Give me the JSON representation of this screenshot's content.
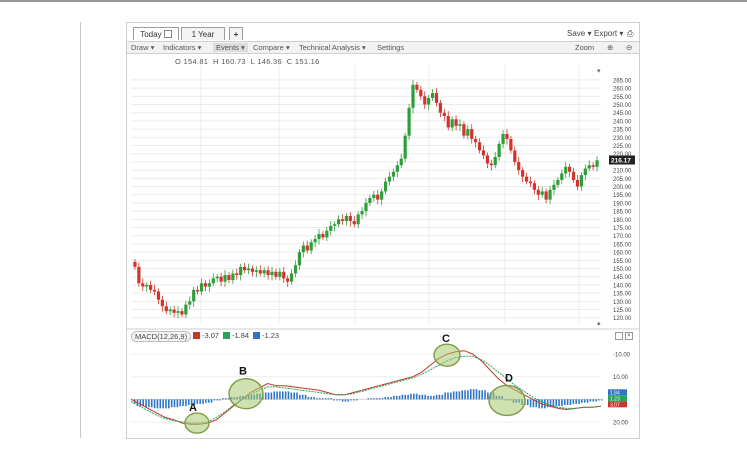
{
  "toolbar": {
    "tabs": [
      "Today",
      "1 Year",
      "+"
    ],
    "save": "Save",
    "export": "Export",
    "menu": [
      "Draw",
      "Indicators",
      "Events",
      "Compare",
      "Technical Analysis",
      "Settings"
    ],
    "zoom": "Zoom"
  },
  "ohlc": {
    "open": "O 154.81",
    "high": "H 160.73",
    "low": "L 146.36",
    "close": "C 151.16"
  },
  "price_panel": {
    "last_price": "216.17",
    "y_ticks": [
      "265.00",
      "260.00",
      "255.00",
      "250.00",
      "245.00",
      "240.00",
      "235.00",
      "230.00",
      "225.00",
      "220.00",
      "215.00",
      "210.00",
      "205.00",
      "200.00",
      "195.00",
      "190.00",
      "185.00",
      "180.00",
      "175.00",
      "170.00",
      "165.00",
      "160.00",
      "155.00",
      "150.00",
      "145.00",
      "140.00",
      "135.00",
      "130.00",
      "125.00",
      "120.00"
    ]
  },
  "macd_panel": {
    "label": "MACD(12,26,9)",
    "values": [
      "-3.07",
      "-1.84",
      "-1.23"
    ],
    "colors": [
      "#c0392b",
      "#27a35a",
      "#2e75c7"
    ],
    "y_ticks": [
      "20.00",
      "10.00",
      "-10.00"
    ],
    "right_tags": [
      "1.84",
      "1.23",
      "3.07"
    ]
  },
  "annotations": [
    "A",
    "B",
    "C",
    "D"
  ],
  "colors": {
    "up": "#2e9e3a",
    "down": "#d0342c",
    "macd_line": "#c0392b",
    "signal_line": "#27a35a",
    "histogram": "#2e75c7",
    "highlight": "#a8c870"
  },
  "chart_data": [
    {
      "type": "candlestick",
      "ylim": [
        118,
        268
      ],
      "y_ticks": [
        120,
        125,
        130,
        135,
        140,
        145,
        150,
        155,
        160,
        165,
        170,
        175,
        180,
        185,
        190,
        195,
        200,
        205,
        210,
        215,
        220,
        225,
        230,
        235,
        240,
        245,
        250,
        255,
        260,
        265
      ],
      "last_price": 216.17,
      "close": [
        151,
        141,
        139,
        140,
        137,
        136,
        131,
        127,
        124,
        125,
        123,
        124,
        122,
        128,
        130,
        137,
        136,
        141,
        139,
        141,
        144,
        145,
        142,
        146,
        143,
        147,
        146,
        151,
        149,
        150,
        148,
        149,
        147,
        149,
        146,
        148,
        145,
        148,
        144,
        142,
        147,
        152,
        160,
        164,
        161,
        166,
        168,
        171,
        169,
        173,
        176,
        177,
        180,
        179,
        182,
        179,
        177,
        183,
        185,
        190,
        193,
        195,
        192,
        197,
        203,
        206,
        209,
        213,
        217,
        231,
        248,
        262,
        259,
        255,
        250,
        254,
        257,
        251,
        245,
        243,
        236,
        241,
        237,
        238,
        231,
        235,
        229,
        227,
        222,
        219,
        214,
        213,
        218,
        226,
        232,
        229,
        222,
        215,
        210,
        206,
        203,
        202,
        198,
        195,
        197,
        192,
        198,
        201,
        204,
        208,
        212,
        209,
        204,
        200,
        207,
        211,
        213,
        212,
        216
      ]
    },
    {
      "type": "line",
      "ylim": [
        -14,
        24
      ],
      "y_ticks": [
        -10,
        10,
        20
      ],
      "series": [
        {
          "values": [
            0,
            -2,
            -4,
            -6,
            -8,
            -9,
            -10.5,
            -11,
            -11,
            -10.5,
            -9,
            -6,
            -3,
            0,
            3,
            5,
            7,
            6,
            6,
            5.5,
            5,
            4.5,
            4,
            3,
            2,
            2,
            3,
            4,
            5,
            6,
            7,
            8,
            9,
            10,
            12,
            15,
            18,
            20,
            21,
            21.5,
            20,
            17,
            13,
            9,
            6,
            4,
            2,
            0,
            -2,
            -3,
            -4,
            -4.5,
            -4,
            -3.5,
            -3.5,
            -3
          ]
        },
        {
          "values": [
            -1,
            -3,
            -5,
            -7,
            -8.5,
            -9.5,
            -10,
            -10.5,
            -10.5,
            -10,
            -8,
            -5.5,
            -2.5,
            0,
            2,
            4,
            5.5,
            5.5,
            5,
            4.5,
            4,
            3.5,
            3,
            2.5,
            2,
            2,
            2.5,
            3.5,
            4.5,
            5.5,
            6.5,
            7.5,
            8.5,
            9.5,
            11,
            13,
            15,
            17,
            18.5,
            19,
            19,
            17.5,
            15,
            12,
            9,
            6,
            3.5,
            1,
            -1,
            -2.5,
            -3.5,
            -4,
            -4,
            -3.5,
            -3.5,
            -3
          ]
        },
        {
          "values": [
            -2,
            -3,
            -3.5,
            -4,
            -4,
            -3.5,
            -3,
            -2.5,
            -2,
            -1.5,
            -0.5,
            0.5,
            1,
            1.5,
            2,
            2.5,
            3,
            3.5,
            3.5,
            3,
            2,
            1,
            0.5,
            0.5,
            -0.5,
            -1,
            -0.5,
            0,
            0.5,
            0.5,
            1,
            1.5,
            2,
            2.5,
            2,
            1.5,
            2,
            3,
            3.5,
            4,
            4.5,
            4,
            3,
            1.5,
            -0.5,
            -1.5,
            -2.5,
            -3.5,
            -4,
            -3.5,
            -3,
            -2.5,
            -2,
            -1.5,
            -1,
            -0.5
          ]
        }
      ]
    }
  ]
}
